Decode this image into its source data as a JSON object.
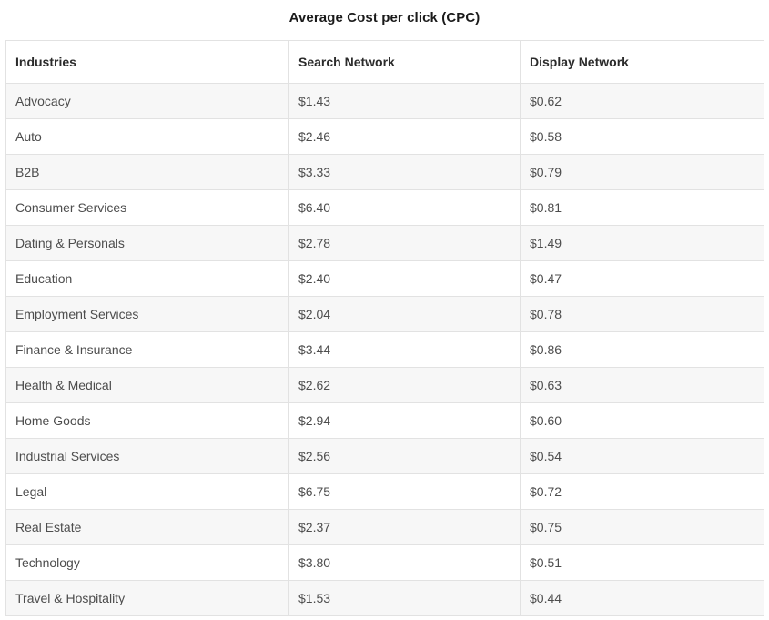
{
  "title": "Average Cost per click (CPC)",
  "table": {
    "columns": [
      "Industries",
      "Search Network",
      "Display Network"
    ],
    "rows": [
      {
        "industry": "Advocacy",
        "search": "$1.43",
        "display": "$0.62"
      },
      {
        "industry": "Auto",
        "search": "$2.46",
        "display": "$0.58"
      },
      {
        "industry": "B2B",
        "search": "$3.33",
        "display": "$0.79"
      },
      {
        "industry": "Consumer Services",
        "search": "$6.40",
        "display": "$0.81"
      },
      {
        "industry": "Dating & Personals",
        "search": "$2.78",
        "display": "$1.49"
      },
      {
        "industry": "Education",
        "search": "$2.40",
        "display": "$0.47"
      },
      {
        "industry": "Employment Services",
        "search": "$2.04",
        "display": "$0.78"
      },
      {
        "industry": "Finance & Insurance",
        "search": "$3.44",
        "display": "$0.86"
      },
      {
        "industry": "Health & Medical",
        "search": "$2.62",
        "display": "$0.63"
      },
      {
        "industry": "Home Goods",
        "search": "$2.94",
        "display": "$0.60"
      },
      {
        "industry": "Industrial Services",
        "search": "$2.56",
        "display": "$0.54"
      },
      {
        "industry": "Legal",
        "search": "$6.75",
        "display": "$0.72"
      },
      {
        "industry": "Real Estate",
        "search": "$2.37",
        "display": "$0.75"
      },
      {
        "industry": "Technology",
        "search": "$3.80",
        "display": "$0.51"
      },
      {
        "industry": "Travel & Hospitality",
        "search": "$1.53",
        "display": "$0.44"
      }
    ]
  },
  "colors": {
    "row_alt_background": "#f7f7f7",
    "row_background": "#ffffff",
    "border": "#e2e2e2",
    "header_text": "#2b2b2b",
    "body_text": "#4d4d4d",
    "title_text": "#1a1a1a"
  },
  "chart_data": {
    "type": "table",
    "title": "Average Cost per click (CPC)",
    "categories": [
      "Advocacy",
      "Auto",
      "B2B",
      "Consumer Services",
      "Dating & Personals",
      "Education",
      "Employment Services",
      "Finance & Insurance",
      "Health & Medical",
      "Home Goods",
      "Industrial Services",
      "Legal",
      "Real Estate",
      "Technology",
      "Travel & Hospitality"
    ],
    "series": [
      {
        "name": "Search Network",
        "unit": "USD",
        "values": [
          1.43,
          2.46,
          3.33,
          6.4,
          2.78,
          2.4,
          2.04,
          3.44,
          2.62,
          2.94,
          2.56,
          6.75,
          2.37,
          3.8,
          1.53
        ]
      },
      {
        "name": "Display Network",
        "unit": "USD",
        "values": [
          0.62,
          0.58,
          0.79,
          0.81,
          1.49,
          0.47,
          0.78,
          0.86,
          0.63,
          0.6,
          0.54,
          0.72,
          0.75,
          0.51,
          0.44
        ]
      }
    ]
  }
}
